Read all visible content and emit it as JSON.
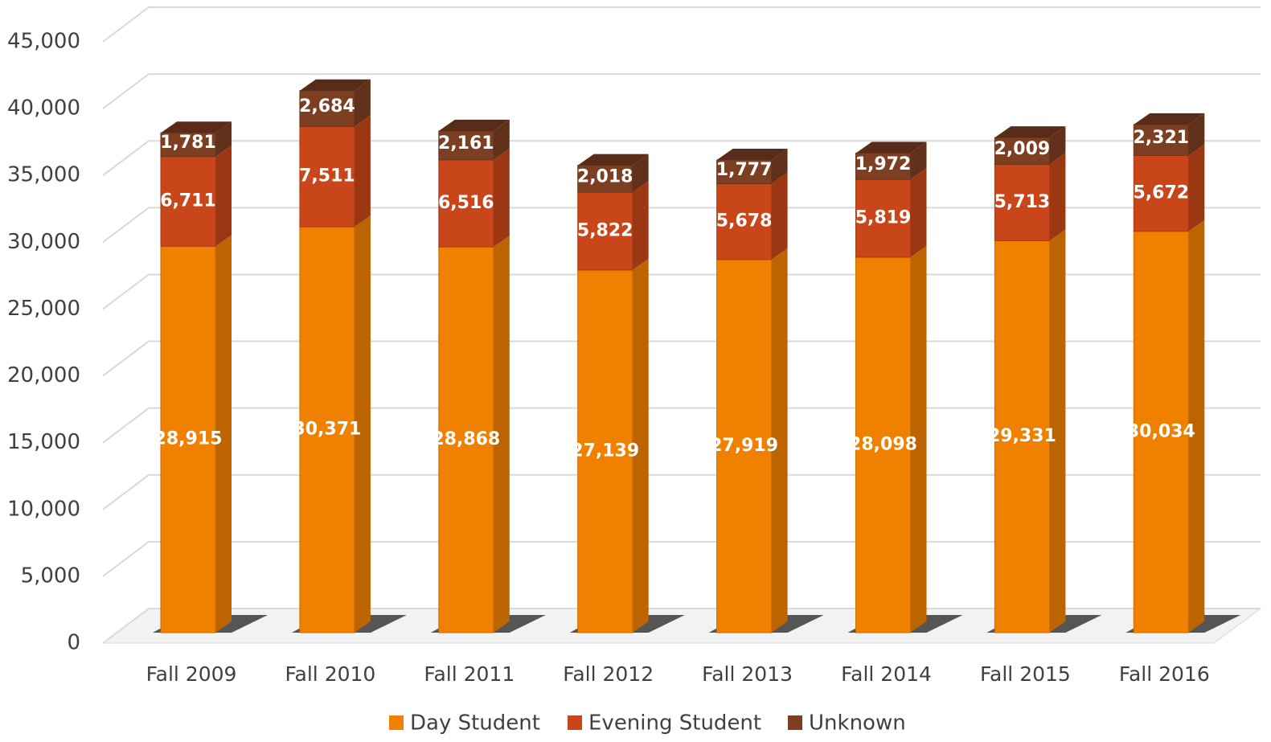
{
  "chart_data": {
    "type": "bar",
    "stacked": true,
    "three_d": true,
    "categories": [
      "Fall 2009",
      "Fall 2010",
      "Fall 2011",
      "Fall 2012",
      "Fall 2013",
      "Fall 2014",
      "Fall 2015",
      "Fall 2016"
    ],
    "series": [
      {
        "name": "Day Student",
        "color": "#f08000",
        "values": [
          28915,
          30371,
          28868,
          27139,
          27919,
          28098,
          29331,
          30034
        ],
        "value_labels": [
          "28,915",
          "30,371",
          "28,868",
          "27,139",
          "27,919",
          "28,098",
          "29,331",
          "30,034"
        ]
      },
      {
        "name": "Evening Student",
        "color": "#c8461a",
        "values": [
          6711,
          7511,
          6516,
          5822,
          5678,
          5819,
          5713,
          5672
        ],
        "value_labels": [
          "6,711",
          "7,511",
          "6,516",
          "5,822",
          "5,678",
          "5,819",
          "5,713",
          "5,672"
        ]
      },
      {
        "name": "Unknown",
        "color": "#7d3f22",
        "values": [
          1781,
          2684,
          2161,
          2018,
          1777,
          1972,
          2009,
          2321
        ],
        "value_labels": [
          "1,781",
          "2,684",
          "2,161",
          "2,018",
          "1,777",
          "1,972",
          "2,009",
          "2,321"
        ]
      }
    ],
    "ylim": [
      0,
      45000
    ],
    "yticks": [
      0,
      {
        "value": 5000,
        "label": "5,000"
      },
      {
        "value": 10000,
        "label": "10,000"
      },
      {
        "value": 15000,
        "label": "15,000"
      },
      {
        "value": 20000,
        "label": "20,000"
      },
      {
        "value": 25000,
        "label": "25,000"
      },
      {
        "value": 30000,
        "label": "30,000"
      },
      {
        "value": 35000,
        "label": "35,000"
      },
      {
        "value": 40000,
        "label": "40,000"
      },
      {
        "value": 45000,
        "label": "45,000"
      }
    ],
    "grid": true,
    "legend": "bottom"
  }
}
